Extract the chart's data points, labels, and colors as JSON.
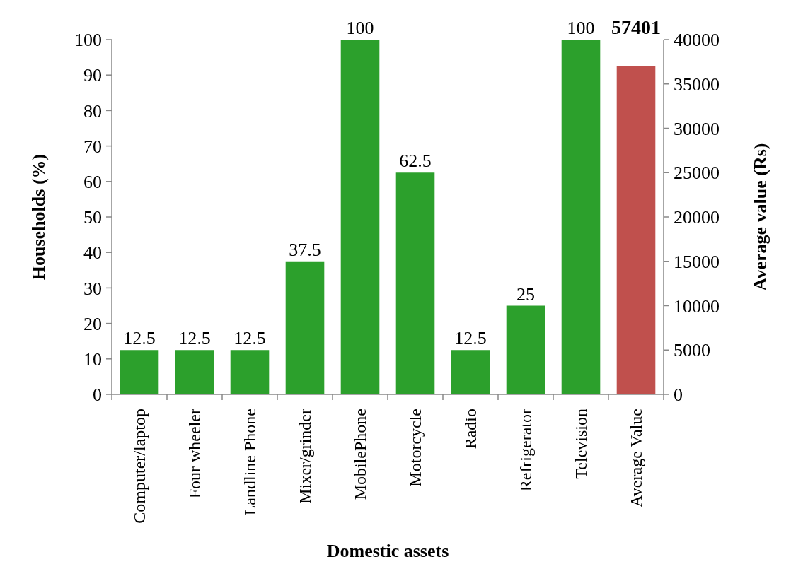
{
  "chart_data": {
    "type": "bar",
    "xlabel": "Domestic assets",
    "ylabel": "Households (%)",
    "y2label": "Average value (Rs)",
    "categories": [
      "Computer/laptop",
      "Four wheeler",
      "Landline Phone",
      "Mixer/grinder",
      "MobilePhone",
      "Motorcycle",
      "Radio",
      "Refrigerator",
      "Television",
      "Average Value"
    ],
    "series": [
      {
        "color": "#2ca02c",
        "values": [
          12.5,
          12.5,
          12.5,
          37.5,
          100,
          62.5,
          12.5,
          25,
          100,
          null
        ],
        "value_labels": [
          "12.5",
          "12.5",
          "12.5",
          "37.5",
          "100",
          "62.5",
          "12.5",
          "25",
          "100",
          null
        ]
      },
      {
        "color": "#c0504d",
        "axis": "y2",
        "values": [
          null,
          null,
          null,
          null,
          null,
          null,
          null,
          null,
          null,
          37000
        ]
      }
    ],
    "ylim": [
      0,
      100
    ],
    "yticks": [
      0,
      10,
      20,
      30,
      40,
      50,
      60,
      70,
      80,
      90,
      100
    ],
    "y2lim": [
      0,
      40000
    ],
    "y2ticks": [
      0,
      5000,
      10000,
      15000,
      20000,
      25000,
      30000,
      35000,
      40000
    ],
    "annotations": [
      "57401"
    ],
    "grid": false
  }
}
